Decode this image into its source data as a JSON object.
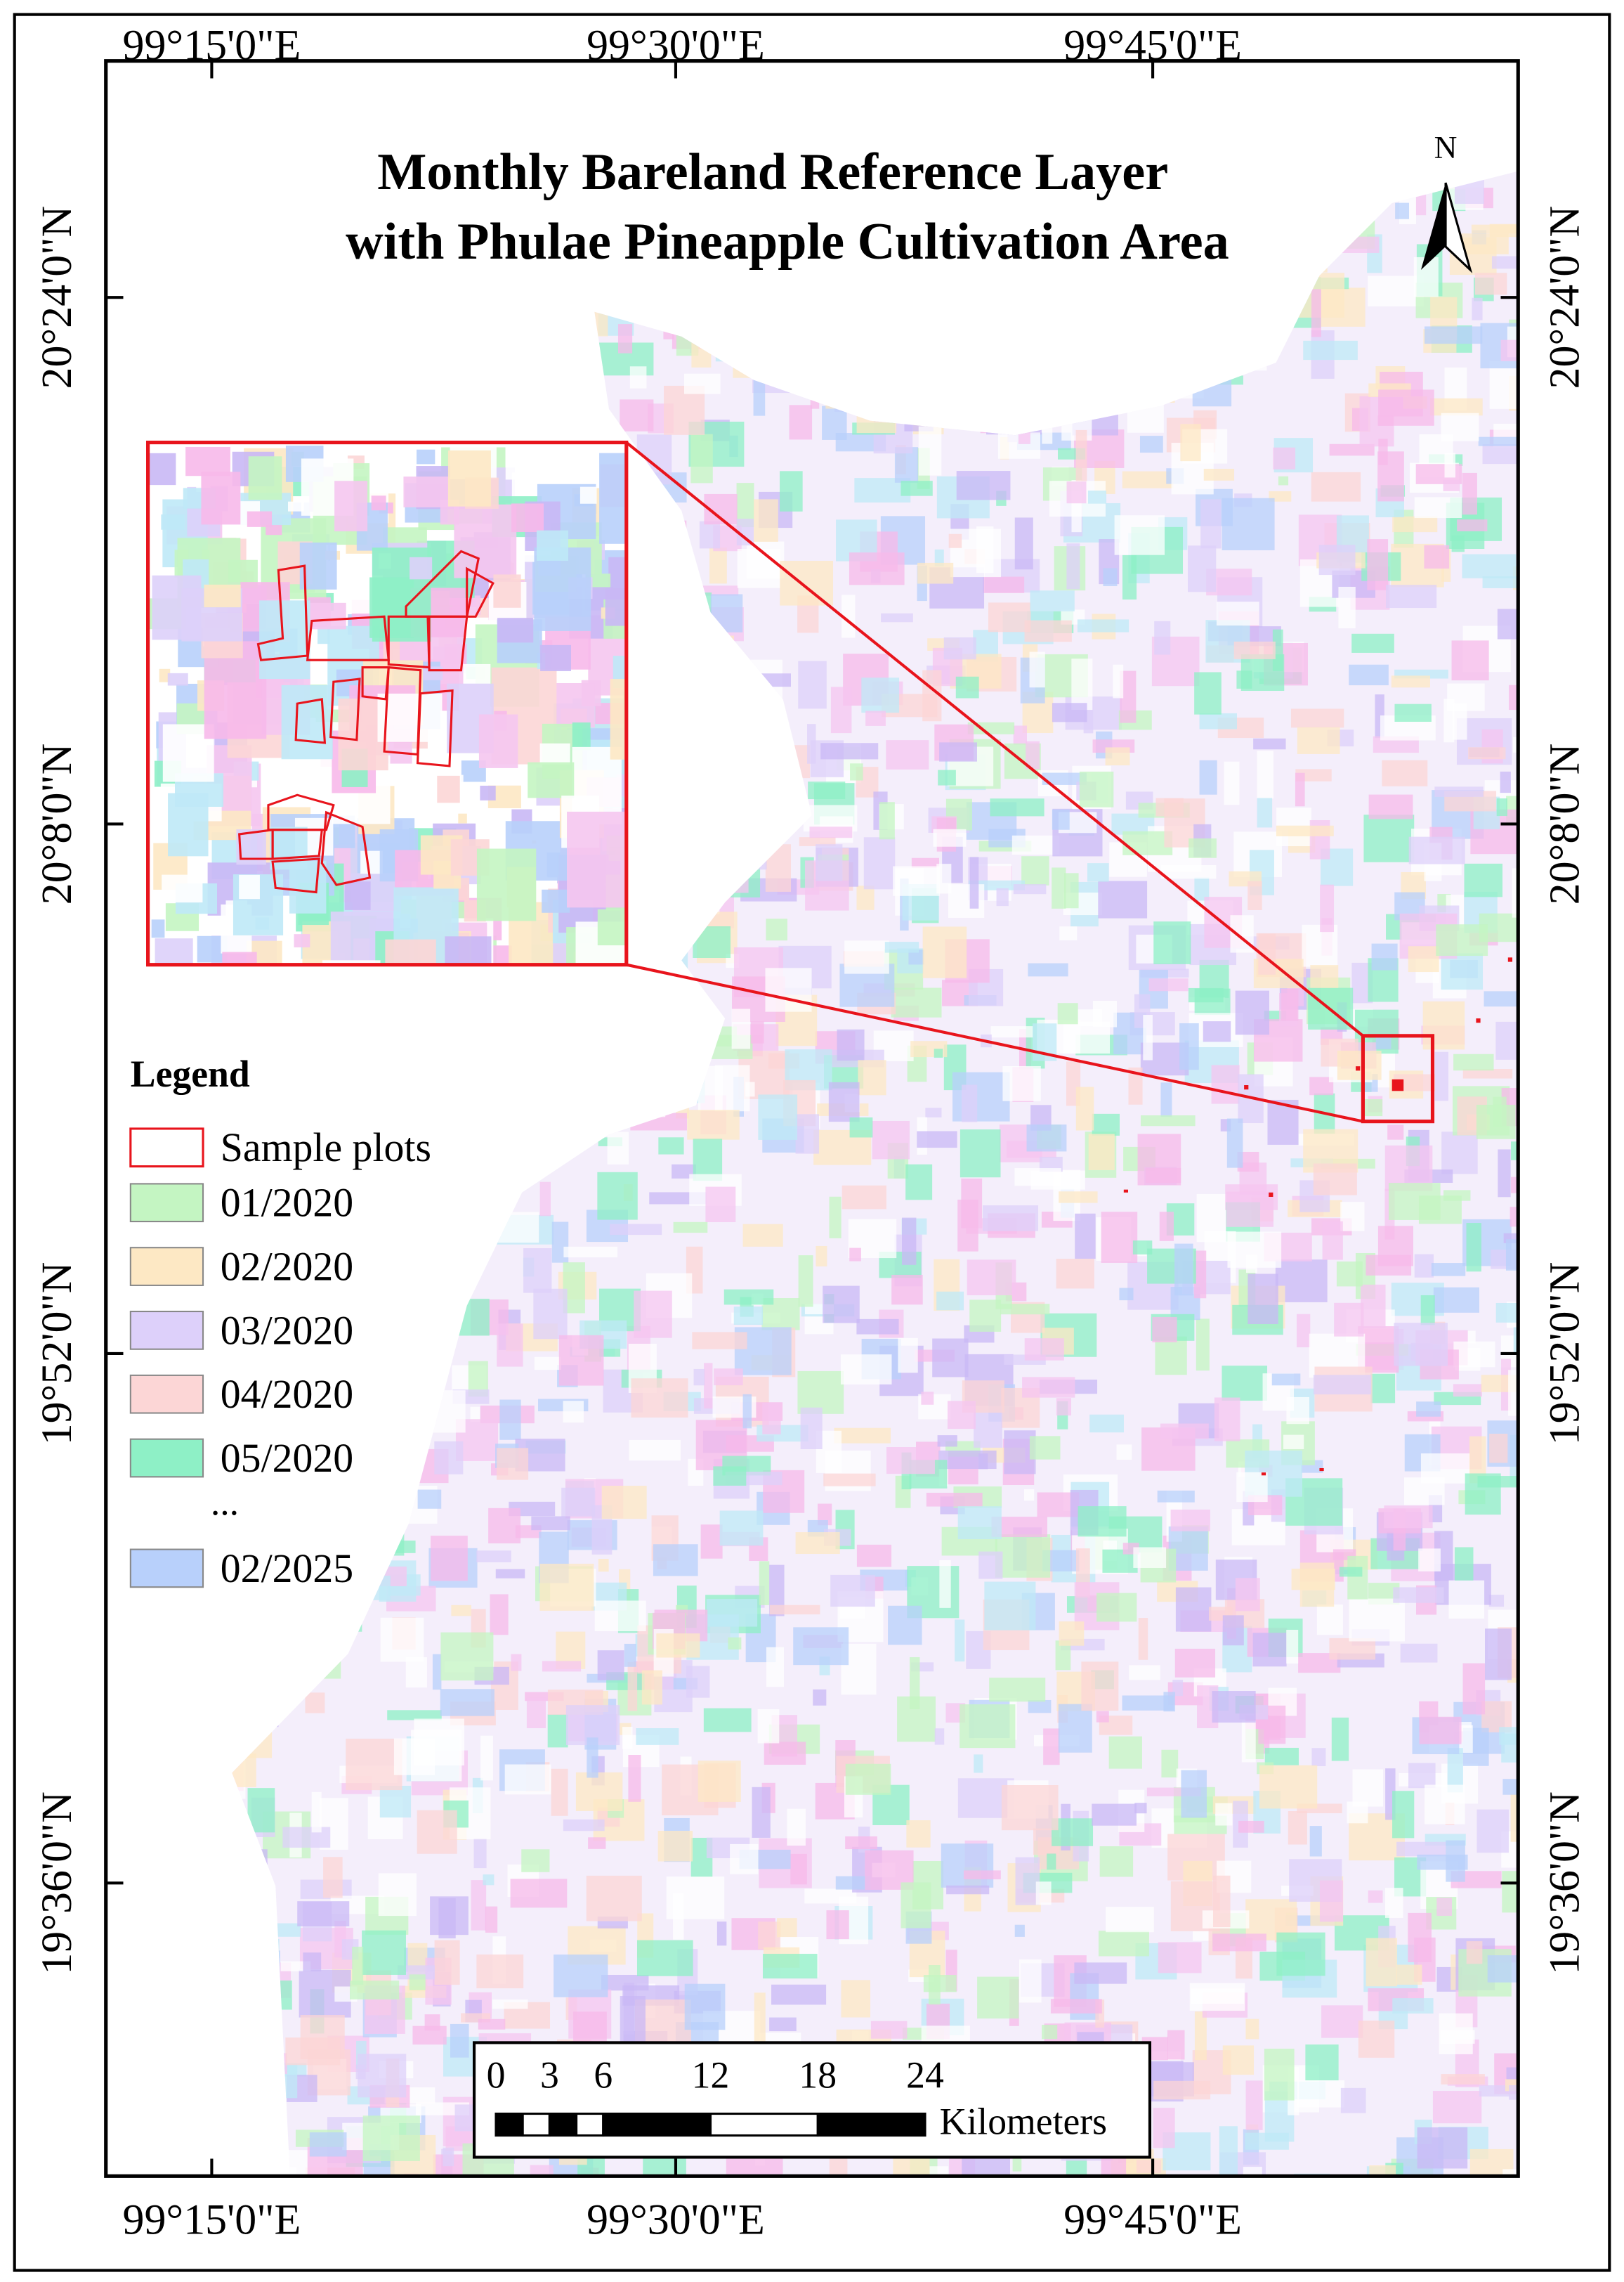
{
  "map": {
    "title": [
      "Monthly Bareland Reference Layer",
      "with Phulae Pineapple Cultivation Area"
    ],
    "north": "N",
    "longitude_labels": [
      "99°15'0\"E",
      "99°30'0\"E",
      "99°45'0\"E"
    ],
    "latitude_labels": [
      "20°24'0\"N",
      "20°8'0\"N",
      "19°52'0\"N",
      "19°36'0\"N"
    ],
    "legend": {
      "title": "Legend",
      "items": [
        {
          "label": "Sample plots",
          "color": "#e8141c",
          "outline": true
        },
        {
          "label": "01/2020",
          "color": "#c4f5c2"
        },
        {
          "label": "02/2020",
          "color": "#fde8c4"
        },
        {
          "label": "03/2020",
          "color": "#ddd0fa"
        },
        {
          "label": "04/2020",
          "color": "#fcd6d6"
        },
        {
          "label": "05/2020",
          "color": "#8ef0c6"
        },
        {
          "label": "02/2025",
          "color": "#b8d0fb"
        }
      ],
      "ellipsis": "..."
    },
    "scale": {
      "ticks": [
        0,
        3,
        6,
        12,
        18,
        24
      ],
      "unit": "Kilometers"
    }
  }
}
